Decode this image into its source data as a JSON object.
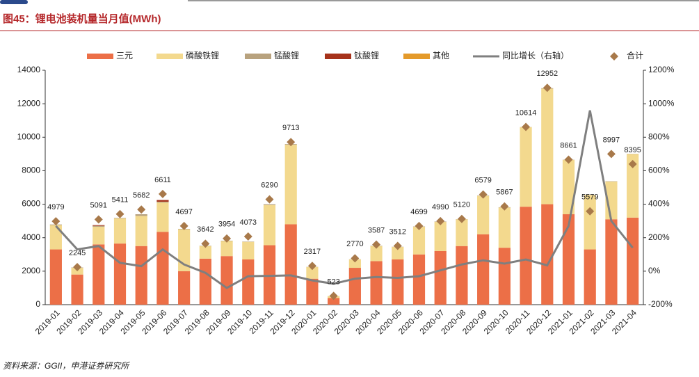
{
  "title": "图45：锂电池装机量当月值(MWh)",
  "source": "资料来源：GGII，申港证券研究所",
  "chart_data": {
    "type": "bar",
    "categories": [
      "2019-01",
      "2019-02",
      "2019-03",
      "2019-04",
      "2019-05",
      "2019-06",
      "2019-07",
      "2019-08",
      "2019-09",
      "2019-10",
      "2019-11",
      "2019-12",
      "2020-01",
      "2020-02",
      "2020-03",
      "2020-04",
      "2020-05",
      "2020-06",
      "2020-07",
      "2020-08",
      "2020-09",
      "2020-10",
      "2020-11",
      "2020-12",
      "2021-01",
      "2021-02",
      "2021-03",
      "2021-04"
    ],
    "series": [
      {
        "name": "三元",
        "type": "bar",
        "color": "#ec6f47",
        "values": [
          3300,
          1800,
          3600,
          3650,
          3500,
          4350,
          2000,
          2750,
          2900,
          2700,
          3550,
          4800,
          1550,
          400,
          2200,
          2600,
          2700,
          3000,
          3200,
          3500,
          4200,
          3400,
          5850,
          6000,
          5400,
          3300,
          5100,
          5200
        ]
      },
      {
        "name": "磷酸铁锂",
        "type": "bar",
        "color": "#f3d98e",
        "values": [
          1450,
          400,
          1050,
          1500,
          1800,
          1750,
          2500,
          750,
          900,
          1050,
          2400,
          4750,
          700,
          120,
          500,
          900,
          750,
          1650,
          1750,
          1600,
          2300,
          2400,
          4750,
          6900,
          3250,
          3250,
          2250,
          3800
        ]
      },
      {
        "name": "锰酸锂",
        "type": "bar",
        "color": "#b8a27e",
        "values": [
          40,
          20,
          60,
          30,
          100,
          50,
          30,
          20,
          20,
          20,
          50,
          40,
          10,
          0,
          10,
          20,
          10,
          20,
          20,
          10,
          20,
          20,
          10,
          30,
          10,
          10,
          20,
          10
        ]
      },
      {
        "name": "钛酸锂",
        "type": "bar",
        "color": "#a6321b",
        "values": [
          0,
          0,
          40,
          0,
          0,
          100,
          0,
          0,
          0,
          0,
          0,
          0,
          0,
          0,
          0,
          0,
          0,
          0,
          0,
          0,
          0,
          0,
          0,
          0,
          0,
          0,
          0,
          0
        ]
      },
      {
        "name": "其他",
        "type": "bar",
        "color": "#e49a2a",
        "values": [
          0,
          0,
          0,
          0,
          0,
          0,
          0,
          0,
          0,
          0,
          0,
          0,
          0,
          0,
          0,
          0,
          0,
          0,
          0,
          0,
          0,
          0,
          0,
          0,
          0,
          0,
          0,
          0
        ]
      },
      {
        "name": "同比增长（右轴）",
        "type": "line",
        "axis": "y2",
        "color": "#7f7f7f",
        "values": [
          270,
          130,
          150,
          50,
          30,
          130,
          40,
          -10,
          -100,
          -30,
          -28,
          -25,
          -55,
          -75,
          -45,
          -35,
          -40,
          -30,
          5,
          40,
          65,
          45,
          70,
          35,
          270,
          960,
          300,
          140
        ]
      },
      {
        "name": "合计",
        "type": "scatter",
        "color": "#a8794a",
        "values": [
          4979,
          2245,
          5091,
          5411,
          5682,
          6611,
          4697,
          3642,
          3954,
          4073,
          6290,
          9713,
          2317,
          523,
          2770,
          3587,
          3512,
          4699,
          4990,
          5120,
          6579,
          5867,
          10614,
          12952,
          8661,
          5579,
          8997,
          8395
        ]
      }
    ],
    "ylim": [
      0,
      14000
    ],
    "yticks": [
      0,
      2000,
      4000,
      6000,
      8000,
      10000,
      12000,
      14000
    ],
    "y2lim": [
      -200,
      1200
    ],
    "y2ticks": [
      {
        "value": -200,
        "label": "-200%"
      },
      {
        "value": 0,
        "label": "0%"
      },
      {
        "value": 200,
        "label": "200%"
      },
      {
        "value": 400,
        "label": "400%"
      },
      {
        "value": 600,
        "label": "600%"
      },
      {
        "value": 800,
        "label": "800%"
      },
      {
        "value": 1000,
        "label": "1000%"
      },
      {
        "value": 1200,
        "label": "1200%"
      }
    ]
  }
}
